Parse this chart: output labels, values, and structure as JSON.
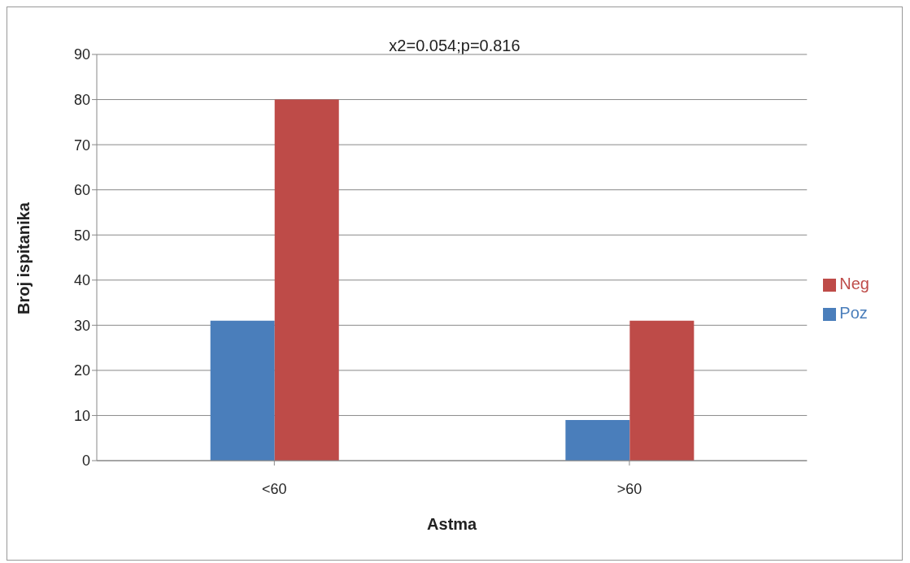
{
  "chart_data": {
    "type": "bar",
    "title": "x2=0.054;p=0.816",
    "xlabel": "Astma",
    "ylabel": "Broj ispitanika",
    "categories": [
      "<60",
      ">60"
    ],
    "series": [
      {
        "name": "Poz",
        "color": "#4a7ebb",
        "values": [
          31,
          9
        ]
      },
      {
        "name": "Neg",
        "color": "#be4b48",
        "values": [
          80,
          31
        ]
      }
    ],
    "ylim": [
      0,
      90
    ],
    "yticks": [
      0,
      10,
      20,
      30,
      40,
      50,
      60,
      70,
      80,
      90
    ],
    "grid": "y",
    "legend": "right"
  }
}
